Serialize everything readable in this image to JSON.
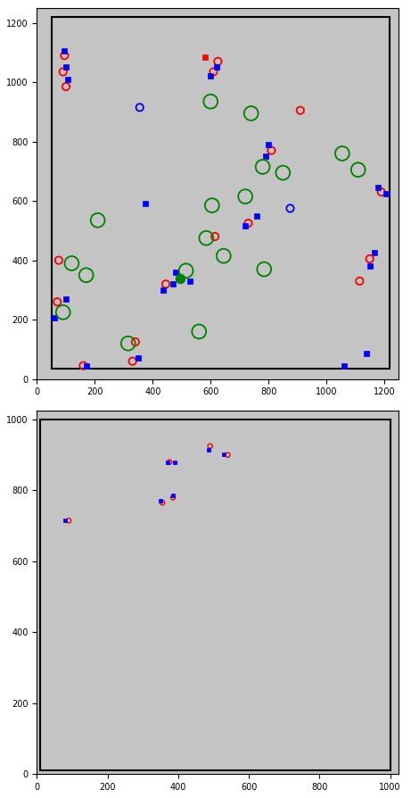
{
  "chart_data": [
    {
      "type": "scatter",
      "xlim": [
        0,
        1250
      ],
      "ylim": [
        0,
        1250
      ],
      "xticks": [
        0,
        200,
        400,
        600,
        800,
        1000,
        1200
      ],
      "yticks": [
        0,
        200,
        400,
        600,
        800,
        1000,
        1200
      ],
      "region": {
        "x": [
          50,
          1220
        ],
        "y": [
          35,
          1220
        ]
      },
      "series": [
        {
          "color": "red",
          "marker": "circle",
          "x": [
            95,
            90,
            100,
            610,
            625,
            910,
            810,
            730,
            615,
            445,
            75,
            70,
            340,
            330,
            160,
            1150,
            1115,
            1190
          ],
          "y": [
            1090,
            1035,
            985,
            1035,
            1070,
            905,
            770,
            525,
            480,
            320,
            400,
            260,
            125,
            60,
            45,
            405,
            330,
            630
          ]
        },
        {
          "color": "blue",
          "marker": "square",
          "x": [
            95,
            100,
            105,
            600,
            620,
            800,
            790,
            760,
            720,
            375,
            480,
            470,
            530,
            435,
            100,
            60,
            170,
            350,
            1180,
            1205,
            1165,
            1150,
            1140,
            1060
          ],
          "y": [
            1105,
            1050,
            1010,
            1020,
            1050,
            790,
            750,
            550,
            515,
            590,
            360,
            320,
            330,
            300,
            270,
            205,
            45,
            70,
            645,
            625,
            425,
            380,
            85,
            45
          ]
        },
        {
          "color": "red",
          "marker": "square",
          "x": [
            580
          ],
          "y": [
            1085
          ]
        },
        {
          "color": "blue",
          "marker": "circle",
          "x": [
            355,
            875
          ],
          "y": [
            915,
            575
          ]
        },
        {
          "color": "green",
          "marker": "ring",
          "x": [
            600,
            740,
            780,
            850,
            1055,
            1110,
            720,
            605,
            585,
            645,
            785,
            515,
            210,
            120,
            170,
            90,
            315,
            560
          ],
          "y": [
            935,
            895,
            715,
            695,
            760,
            705,
            615,
            585,
            475,
            415,
            370,
            365,
            535,
            390,
            350,
            225,
            120,
            160
          ]
        },
        {
          "color": "green",
          "marker": "dot",
          "x": [
            495
          ],
          "y": [
            340
          ]
        }
      ]
    },
    {
      "type": "scatter",
      "xlim": [
        0,
        1024
      ],
      "ylim": [
        0,
        1024
      ],
      "xticks": [
        0,
        200,
        400,
        600,
        800,
        1000
      ],
      "yticks": [
        0,
        200,
        400,
        600,
        800,
        1000
      ],
      "region": {
        "x": [
          10,
          1000
        ],
        "y": [
          10,
          1000
        ]
      },
      "series": [
        {
          "color": "red",
          "marker": "small_circle",
          "x": [
            90,
            375,
            355,
            385,
            490,
            540
          ],
          "y": [
            715,
            880,
            765,
            780,
            925,
            900
          ]
        },
        {
          "color": "blue",
          "marker": "small_square",
          "x": [
            80,
            370,
            390,
            350,
            385,
            485,
            530
          ],
          "y": [
            715,
            880,
            880,
            770,
            785,
            915,
            902
          ]
        }
      ]
    }
  ]
}
